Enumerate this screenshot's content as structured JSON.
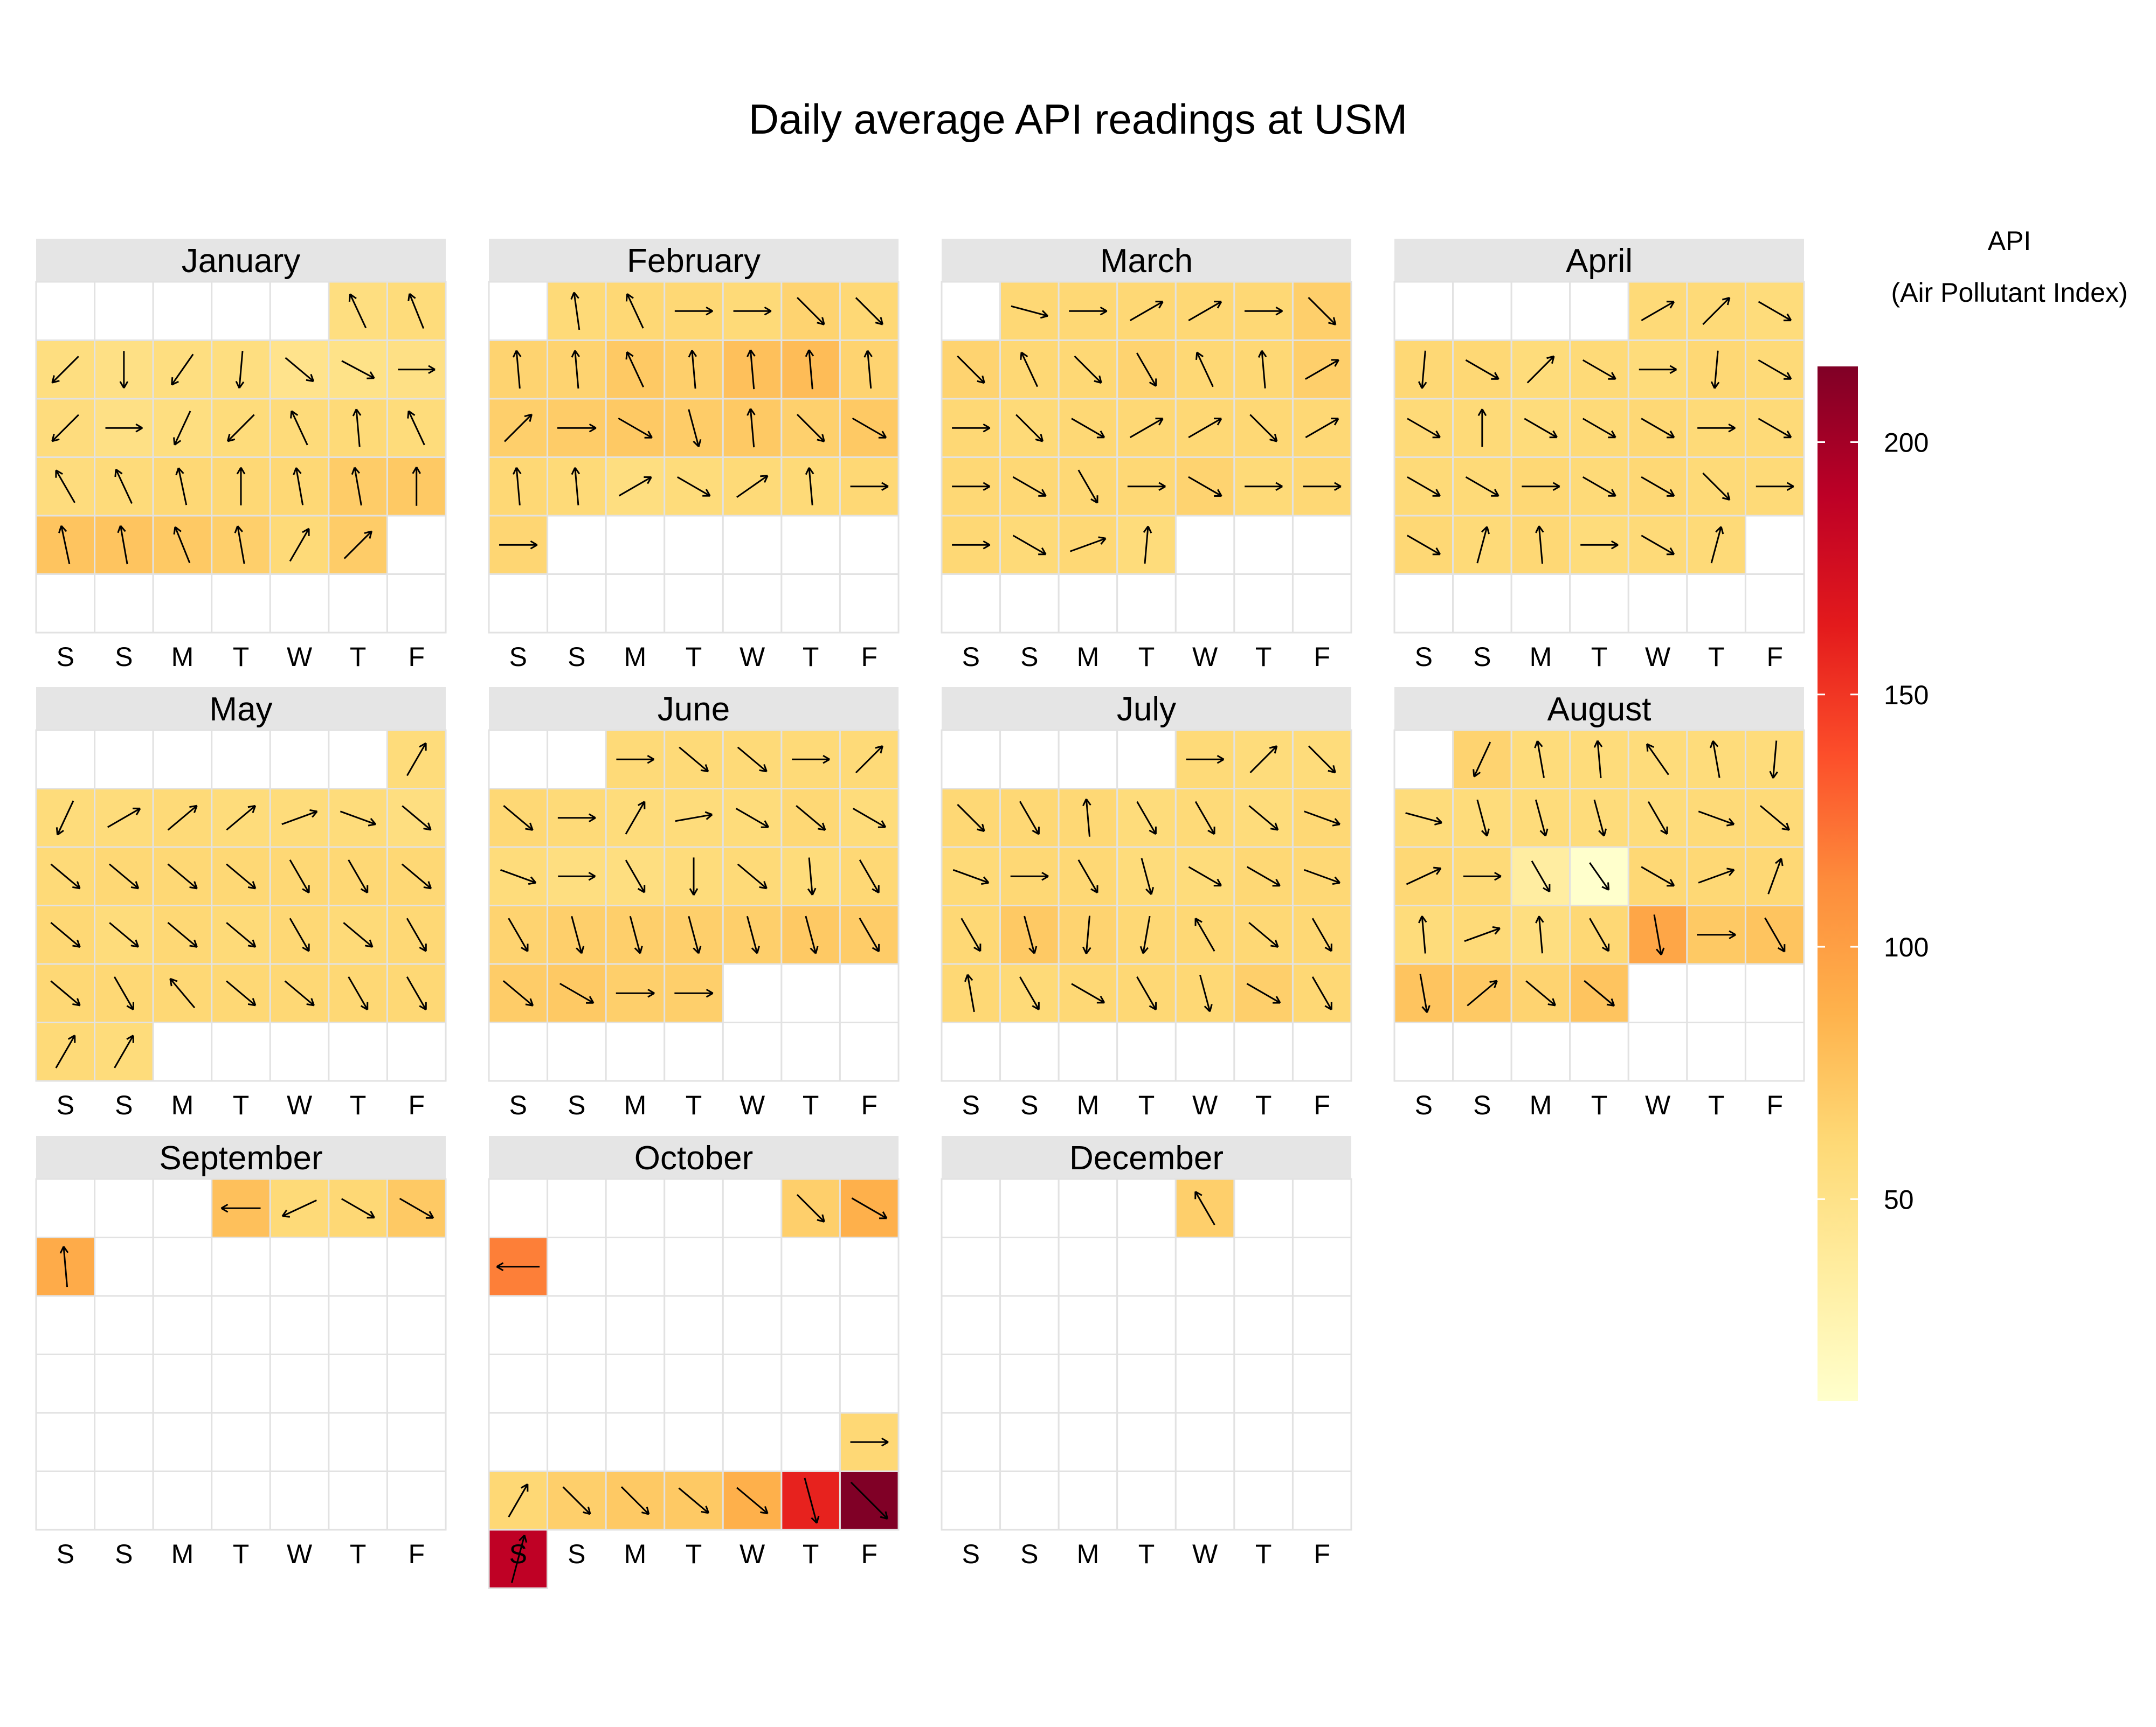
{
  "chart_data": {
    "type": "heatmap",
    "title": "Daily average API readings at USM",
    "weekday_labels": [
      "S",
      "S",
      "M",
      "T",
      "W",
      "T",
      "F"
    ],
    "legend": {
      "title_line1": "API",
      "title_line2": "(Air Pollutant Index)",
      "ticks": [
        50,
        100,
        150,
        200
      ],
      "range": [
        10,
        215
      ],
      "colors": [
        "#ffffcc",
        "#ffeda0",
        "#fed976",
        "#feb24c",
        "#fd8d3c",
        "#fc4e2a",
        "#e31a1c",
        "#bd0026",
        "#800026"
      ],
      "placement": "right"
    },
    "arrows": "wind direction (daily mean), drawn inside each cell",
    "months": [
      {
        "name": "January",
        "first_weekday": 5,
        "values": [
          55,
          58,
          55,
          52,
          55,
          55,
          48,
          50,
          52,
          57,
          52,
          55,
          58,
          59,
          60,
          58,
          57,
          59,
          62,
          62,
          62,
          70,
          72,
          75,
          75,
          72,
          68,
          60,
          70
        ],
        "angles": [
          115,
          112,
          225,
          -90,
          235,
          265,
          -40,
          -28,
          0,
          225,
          0,
          245,
          225,
          115,
          95,
          115,
          120,
          115,
          102,
          90,
          100,
          100,
          90,
          102,
          100,
          112,
          100,
          60,
          45
        ]
      },
      {
        "name": "February",
        "first_weekday": 1,
        "values": [
          60,
          62,
          62,
          60,
          65,
          62,
          65,
          65,
          72,
          68,
          78,
          80,
          65,
          68,
          70,
          72,
          70,
          72,
          67,
          72,
          62,
          60,
          55,
          58,
          60,
          60,
          62,
          63
        ],
        "angles": [
          98,
          115,
          0,
          0,
          -45,
          -45,
          95,
          95,
          115,
          95,
          95,
          95,
          95,
          45,
          0,
          -30,
          -75,
          95,
          -45,
          -30,
          95,
          95,
          30,
          -30,
          35,
          95,
          0,
          0
        ]
      },
      {
        "name": "March",
        "first_weekday": 1,
        "values": [
          62,
          62,
          62,
          62,
          62,
          68,
          65,
          62,
          62,
          65,
          62,
          62,
          68,
          62,
          60,
          62,
          62,
          62,
          62,
          62,
          62,
          62,
          62,
          62,
          65,
          60,
          62,
          62,
          60,
          62,
          58
        ],
        "angles": [
          -15,
          0,
          30,
          30,
          0,
          -45,
          -45,
          115,
          -45,
          -60,
          115,
          95,
          30,
          0,
          -45,
          -30,
          30,
          30,
          -45,
          30,
          0,
          -30,
          -60,
          0,
          -30,
          0,
          0,
          0,
          -30,
          20,
          85
        ]
      },
      {
        "name": "April",
        "first_weekday": 4,
        "values": [
          60,
          60,
          58,
          62,
          62,
          58,
          60,
          58,
          62,
          60,
          60,
          60,
          58,
          60,
          62,
          60,
          60,
          60,
          60,
          62,
          60,
          62,
          60,
          60,
          62,
          60,
          62,
          58,
          60,
          60
        ],
        "angles": [
          30,
          45,
          -30,
          -95,
          -30,
          45,
          -30,
          0,
          -95,
          -30,
          -30,
          90,
          -30,
          -30,
          -30,
          0,
          -30,
          -30,
          -30,
          0,
          -30,
          -30,
          -45,
          0,
          -30,
          75,
          95,
          0,
          -30,
          75
        ]
      },
      {
        "name": "May",
        "first_weekday": 6,
        "values": [
          58,
          58,
          58,
          60,
          58,
          58,
          58,
          55,
          60,
          62,
          62,
          62,
          62,
          62,
          62,
          62,
          58,
          62,
          60,
          62,
          60,
          62,
          62,
          62,
          62,
          62,
          62,
          62,
          62,
          60,
          58
        ],
        "angles": [
          60,
          -115,
          30,
          40,
          40,
          20,
          -20,
          -40,
          -40,
          -40,
          -40,
          -40,
          -60,
          -60,
          -40,
          -40,
          -40,
          -40,
          -40,
          -60,
          -40,
          -60,
          -40,
          -60,
          130,
          -40,
          -40,
          -60,
          -60,
          60,
          60
        ]
      },
      {
        "name": "June",
        "first_weekday": 2,
        "values": [
          60,
          60,
          60,
          60,
          60,
          62,
          60,
          58,
          58,
          58,
          62,
          58,
          58,
          55,
          55,
          58,
          60,
          58,
          62,
          65,
          68,
          68,
          68,
          68,
          72,
          70,
          70,
          72,
          68,
          68
        ],
        "angles": [
          0,
          -40,
          -40,
          0,
          45,
          -40,
          0,
          60,
          10,
          -30,
          -40,
          -30,
          -20,
          0,
          -60,
          -90,
          -40,
          -85,
          -60,
          -60,
          -75,
          -75,
          -75,
          -75,
          -75,
          -60,
          -40,
          -30,
          0,
          0
        ]
      },
      {
        "name": "July",
        "first_weekday": 4,
        "values": [
          60,
          58,
          58,
          62,
          62,
          62,
          58,
          60,
          58,
          62,
          60,
          62,
          62,
          58,
          58,
          62,
          62,
          62,
          72,
          65,
          62,
          62,
          62,
          62,
          62,
          60,
          62,
          62,
          62,
          68,
          62
        ],
        "angles": [
          0,
          45,
          -45,
          -45,
          -60,
          95,
          -60,
          -60,
          -40,
          -20,
          -20,
          0,
          -60,
          -75,
          -30,
          -30,
          -20,
          -60,
          -75,
          -95,
          -100,
          120,
          -40,
          -60,
          100,
          -60,
          -30,
          -60,
          -75,
          -30,
          -60
        ]
      },
      {
        "name": "August",
        "first_weekday": 1,
        "values": [
          65,
          58,
          58,
          58,
          58,
          58,
          58,
          58,
          58,
          58,
          58,
          60,
          60,
          62,
          60,
          35,
          10,
          62,
          62,
          62,
          58,
          60,
          55,
          62,
          95,
          72,
          75,
          75,
          72,
          65,
          75
        ],
        "angles": [
          -115,
          100,
          95,
          125,
          100,
          -95,
          -15,
          -75,
          -75,
          -75,
          -60,
          -20,
          -40,
          25,
          0,
          -60,
          -55,
          -30,
          20,
          70,
          95,
          20,
          95,
          -60,
          -80,
          0,
          -60,
          -80,
          40,
          -40,
          -40
        ]
      },
      {
        "name": "September",
        "first_weekday": 3,
        "values": [
          78,
          60,
          62,
          72,
          92
        ],
        "angles": [
          180,
          -155,
          -30,
          -30,
          95
        ]
      },
      {
        "name": "October",
        "first_weekday": 5,
        "values": [
          68,
          88,
          118,
          null,
          null,
          null,
          null,
          null,
          null,
          null,
          null,
          null,
          null,
          null,
          null,
          null,
          null,
          null,
          null,
          null,
          null,
          null,
          null,
          null,
          null,
          null,
          null,
          null,
          null,
          62,
          62,
          68,
          72,
          72,
          88,
          160,
          215,
          188
        ],
        "angles": [
          -45,
          -30,
          180,
          null,
          null,
          null,
          null,
          null,
          null,
          null,
          null,
          null,
          null,
          null,
          null,
          null,
          null,
          null,
          null,
          null,
          null,
          null,
          null,
          null,
          null,
          null,
          null,
          null,
          null,
          0,
          60,
          -45,
          -45,
          -40,
          -40,
          -75,
          -45,
          75
        ]
      },
      {
        "name": "December",
        "first_weekday": 4,
        "values": [
          68
        ],
        "angles": [
          120
        ]
      }
    ]
  }
}
